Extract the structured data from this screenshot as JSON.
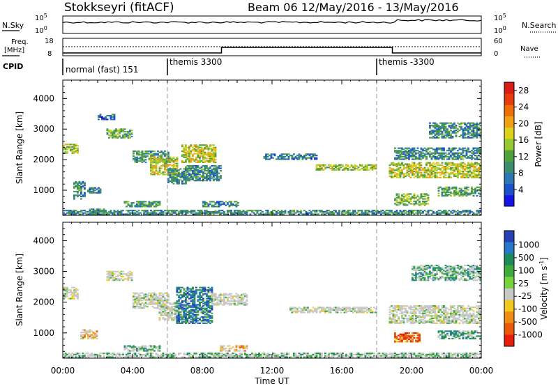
{
  "header": {
    "title": "Stokkseyri (fitACF)",
    "beam_date": "Beam 06  12/May/2016 - 13/May/2016"
  },
  "left_labels": {
    "nsky": "N.Sky",
    "freq_line1": "Freq.",
    "freq_line2": "[MHz]",
    "cpid": "CPID"
  },
  "right_labels": {
    "nsearch": "N.Search",
    "nave": "Nave"
  },
  "tick_labels": {
    "nsky_top": "10^5",
    "nsky_bottom": "10^0",
    "nsearch_top": "10^5",
    "nsearch_bottom": "10^0",
    "freq_top": "18",
    "freq_bottom": "8",
    "nave_top": "60",
    "nave_bottom": "0"
  },
  "cpid_segments": [
    {
      "label": "normal (fast) 151",
      "start_hour": 0
    },
    {
      "label": "themis 3300",
      "start_hour": 6
    },
    {
      "label": "themis -3300",
      "start_hour": 18
    }
  ],
  "chart_data": [
    {
      "type": "heatmap",
      "name": "power",
      "xlabel": "",
      "ylabel": "Slant Range [km]",
      "x_ticks": [
        "00:00",
        "04:00",
        "08:00",
        "12:00",
        "16:00",
        "20:00",
        "00:00"
      ],
      "xlim_hours": [
        0,
        24
      ],
      "y_ticks": [
        1000,
        2000,
        3000,
        4000
      ],
      "ylim": [
        180,
        4600
      ],
      "colorbar_label": "Power [dB]",
      "colorbar_ticks": [
        4,
        8,
        12,
        16,
        20,
        24,
        28
      ],
      "colorbar_range": [
        0,
        30
      ],
      "colors": [
        "#1414e6",
        "#1e50c8",
        "#2d78b4",
        "#3c8c6e",
        "#50a03c",
        "#96c832",
        "#dcd21e",
        "#f0a014",
        "#f06e0a",
        "#e63c0a",
        "#d71e14"
      ],
      "regions": [
        {
          "t": [
            0.0,
            0.8
          ],
          "r": [
            2200,
            2500
          ],
          "level": 0.5
        },
        {
          "t": [
            0.6,
            1.3
          ],
          "r": [
            700,
            1300
          ],
          "level": 0.3
        },
        {
          "t": [
            1.4,
            2.2
          ],
          "r": [
            900,
            1100
          ],
          "level": 0.25
        },
        {
          "t": [
            1.5,
            2.5
          ],
          "r": [
            200,
            400
          ],
          "level": 0.35
        },
        {
          "t": [
            2.5,
            4.0
          ],
          "r": [
            2700,
            3000
          ],
          "level": 0.4
        },
        {
          "t": [
            2.0,
            3.0
          ],
          "r": [
            3300,
            3500
          ],
          "level": 0.2
        },
        {
          "t": [
            3.5,
            5.5
          ],
          "r": [
            450,
            650
          ],
          "level": 0.35
        },
        {
          "t": [
            4.0,
            6.0
          ],
          "r": [
            1900,
            2300
          ],
          "level": 0.35
        },
        {
          "t": [
            5.0,
            6.5
          ],
          "r": [
            1500,
            2100
          ],
          "level": 0.55
        },
        {
          "t": [
            6.0,
            7.0
          ],
          "r": [
            1200,
            1700
          ],
          "level": 0.3
        },
        {
          "t": [
            6.8,
            8.7
          ],
          "r": [
            1900,
            2500
          ],
          "level": 0.55
        },
        {
          "t": [
            7.0,
            9.0
          ],
          "r": [
            1300,
            1800
          ],
          "level": 0.3
        },
        {
          "t": [
            8.0,
            10.0
          ],
          "r": [
            450,
            650
          ],
          "level": 0.3
        },
        {
          "t": [
            11.5,
            14.5
          ],
          "r": [
            2000,
            2200
          ],
          "level": 0.25
        },
        {
          "t": [
            14.5,
            18.0
          ],
          "r": [
            1650,
            1850
          ],
          "level": 0.5
        },
        {
          "t": [
            18.7,
            24.0
          ],
          "r": [
            1400,
            1900
          ],
          "level": 0.55
        },
        {
          "t": [
            19.0,
            24.0
          ],
          "r": [
            2000,
            2400
          ],
          "level": 0.3
        },
        {
          "t": [
            21.0,
            24.0
          ],
          "r": [
            2700,
            3200
          ],
          "level": 0.3
        },
        {
          "t": [
            21.5,
            24.0
          ],
          "r": [
            800,
            1100
          ],
          "level": 0.4
        },
        {
          "t": [
            19.0,
            21.0
          ],
          "r": [
            500,
            900
          ],
          "level": 0.45
        },
        {
          "t": [
            0.0,
            24.0
          ],
          "r": [
            200,
            350
          ],
          "level": 0.3
        }
      ]
    },
    {
      "type": "heatmap",
      "name": "velocity",
      "xlabel": "Time UT",
      "ylabel": "Slant Range [km]",
      "x_ticks": [
        "00:00",
        "04:00",
        "08:00",
        "12:00",
        "16:00",
        "20:00",
        "00:00"
      ],
      "xlim_hours": [
        0,
        24
      ],
      "y_ticks": [
        1000,
        2000,
        3000,
        4000
      ],
      "ylim": [
        180,
        4600
      ],
      "colorbar_label": "Velocity [m s^-1]",
      "colorbar_ticks": [
        "1000",
        "500",
        "100",
        "25",
        "-25",
        "-100",
        "-500",
        "-1000"
      ],
      "colors": [
        "#2840b4",
        "#2878c8",
        "#1e8c5a",
        "#3caa3c",
        "#78d23c",
        "#c8c8c8",
        "#f0c81e",
        "#f08c14",
        "#eb5a0a",
        "#e61e0a"
      ],
      "regions": [
        {
          "t": [
            0.0,
            0.8
          ],
          "r": [
            2100,
            2500
          ],
          "level": 0.5
        },
        {
          "t": [
            2.5,
            4.0
          ],
          "r": [
            2700,
            3000
          ],
          "level": 0.5
        },
        {
          "t": [
            4.0,
            6.0
          ],
          "r": [
            1800,
            2300
          ],
          "level": 0.5
        },
        {
          "t": [
            5.5,
            6.8
          ],
          "r": [
            1400,
            2000
          ],
          "level": 0.5
        },
        {
          "t": [
            6.5,
            8.5
          ],
          "r": [
            1300,
            2500
          ],
          "level": 0.2
        },
        {
          "t": [
            8.5,
            10.5
          ],
          "r": [
            1900,
            2300
          ],
          "level": 0.5
        },
        {
          "t": [
            13.0,
            18.0
          ],
          "r": [
            1650,
            1850
          ],
          "level": 0.5
        },
        {
          "t": [
            18.7,
            24.0
          ],
          "r": [
            1300,
            1900
          ],
          "level": 0.5
        },
        {
          "t": [
            20.0,
            24.0
          ],
          "r": [
            2700,
            3200
          ],
          "level": 0.35
        },
        {
          "t": [
            19.0,
            20.5
          ],
          "r": [
            700,
            1000
          ],
          "level": 0.85
        },
        {
          "t": [
            21.5,
            24.0
          ],
          "r": [
            800,
            1050
          ],
          "level": 0.3
        },
        {
          "t": [
            3.5,
            5.5
          ],
          "r": [
            400,
            600
          ],
          "level": 0.35
        },
        {
          "t": [
            9.0,
            10.5
          ],
          "r": [
            400,
            600
          ],
          "level": 0.65
        },
        {
          "t": [
            1.0,
            2.0
          ],
          "r": [
            800,
            1100
          ],
          "level": 0.65
        },
        {
          "t": [
            0.0,
            24.0
          ],
          "r": [
            200,
            350
          ],
          "level": 0.4
        }
      ]
    }
  ]
}
